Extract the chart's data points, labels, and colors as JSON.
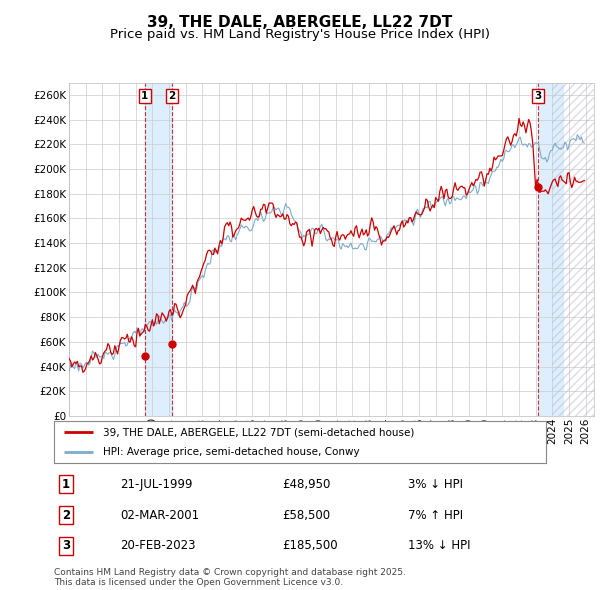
{
  "title": "39, THE DALE, ABERGELE, LL22 7DT",
  "subtitle": "Price paid vs. HM Land Registry's House Price Index (HPI)",
  "ylim": [
    0,
    270000
  ],
  "yticks": [
    0,
    20000,
    40000,
    60000,
    80000,
    100000,
    120000,
    140000,
    160000,
    180000,
    200000,
    220000,
    240000,
    260000
  ],
  "line1_color": "#cc0000",
  "line2_color": "#7faacc",
  "legend_label1": "39, THE DALE, ABERGELE, LL22 7DT (semi-detached house)",
  "legend_label2": "HPI: Average price, semi-detached house, Conwy",
  "transaction1_date": 1999.55,
  "transaction1_price": 48950,
  "transaction1_label": "1",
  "transaction1_hpi": "3% ↓ HPI",
  "transaction1_text": "21-JUL-1999",
  "transaction2_date": 2001.17,
  "transaction2_price": 58500,
  "transaction2_label": "2",
  "transaction2_hpi": "7% ↑ HPI",
  "transaction2_text": "02-MAR-2001",
  "transaction3_date": 2023.13,
  "transaction3_price": 185500,
  "transaction3_label": "3",
  "transaction3_hpi": "13% ↓ HPI",
  "transaction3_text": "20-FEB-2023",
  "footer": "Contains HM Land Registry data © Crown copyright and database right 2025.\nThis data is licensed under the Open Government Licence v3.0.",
  "bg_color": "#ffffff",
  "grid_color": "#cccccc",
  "title_fontsize": 11,
  "subtitle_fontsize": 9.5,
  "tick_fontsize": 7.5,
  "shade_color": "#ddeeff",
  "hatch_color": "#ddddee"
}
